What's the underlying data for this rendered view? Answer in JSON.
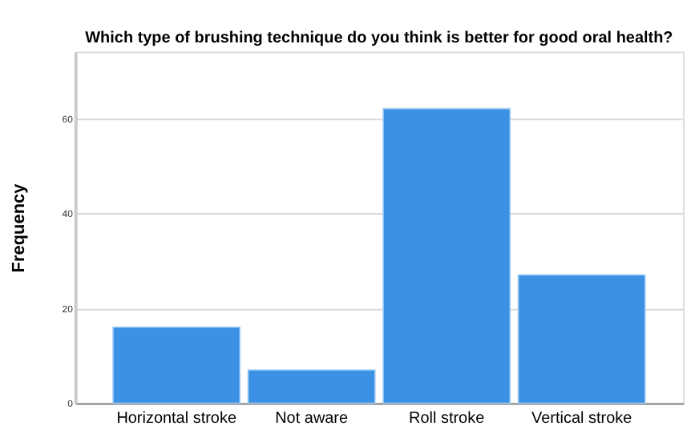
{
  "chart_data": {
    "type": "bar",
    "title": "Which type of brushing technique do you think is better for good oral health?",
    "ylabel": "Frequency",
    "categories": [
      "Horizontal stroke",
      "Not aware",
      "Roll stroke",
      "Vertical stroke"
    ],
    "values": [
      16,
      7,
      62,
      27
    ],
    "color": "#3b91e4",
    "ylim": [
      0,
      74
    ],
    "yticks": [
      0,
      20,
      40,
      60
    ],
    "grid": "y"
  }
}
